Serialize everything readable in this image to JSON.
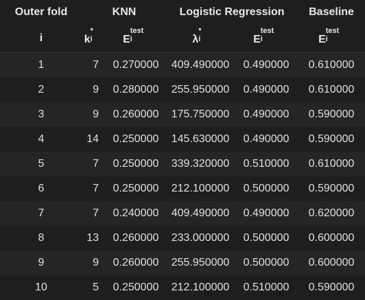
{
  "header": {
    "group": {
      "outer_fold": "Outer fold",
      "knn": "KNN",
      "logreg": "Logistic Regression",
      "baseline": "Baseline"
    },
    "sub": {
      "fold": "i",
      "k_base": "k",
      "k_sub": "i",
      "k_sup": "*",
      "e_base": "E",
      "e_sub": "i",
      "e_sup": "test",
      "lambda_base": "λ",
      "lambda_sub": "i",
      "lambda_sup": "*"
    }
  },
  "rows": [
    {
      "fold": "1",
      "k": "7",
      "knn_e": "0.270000",
      "lambda": "409.490000",
      "lr_e": "0.490000",
      "base_e": "0.610000"
    },
    {
      "fold": "2",
      "k": "9",
      "knn_e": "0.280000",
      "lambda": "255.950000",
      "lr_e": "0.490000",
      "base_e": "0.610000"
    },
    {
      "fold": "3",
      "k": "9",
      "knn_e": "0.260000",
      "lambda": "175.750000",
      "lr_e": "0.490000",
      "base_e": "0.590000"
    },
    {
      "fold": "4",
      "k": "14",
      "knn_e": "0.250000",
      "lambda": "145.630000",
      "lr_e": "0.490000",
      "base_e": "0.590000"
    },
    {
      "fold": "5",
      "k": "7",
      "knn_e": "0.250000",
      "lambda": "339.320000",
      "lr_e": "0.510000",
      "base_e": "0.610000"
    },
    {
      "fold": "6",
      "k": "7",
      "knn_e": "0.250000",
      "lambda": "212.100000",
      "lr_e": "0.500000",
      "base_e": "0.590000"
    },
    {
      "fold": "7",
      "k": "7",
      "knn_e": "0.240000",
      "lambda": "409.490000",
      "lr_e": "0.490000",
      "base_e": "0.620000"
    },
    {
      "fold": "8",
      "k": "13",
      "knn_e": "0.260000",
      "lambda": "233.000000",
      "lr_e": "0.500000",
      "base_e": "0.600000"
    },
    {
      "fold": "9",
      "k": "9",
      "knn_e": "0.260000",
      "lambda": "255.950000",
      "lr_e": "0.500000",
      "base_e": "0.600000"
    },
    {
      "fold": "10",
      "k": "5",
      "knn_e": "0.250000",
      "lambda": "212.100000",
      "lr_e": "0.510000",
      "base_e": "0.590000"
    }
  ]
}
